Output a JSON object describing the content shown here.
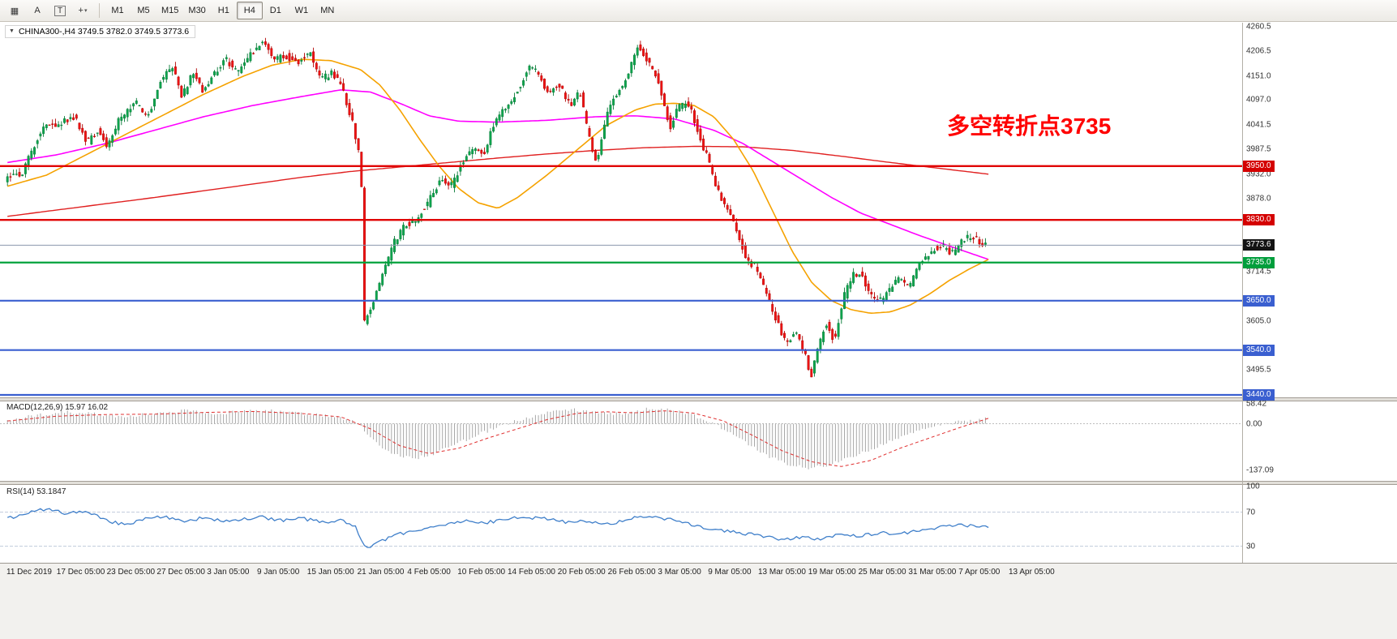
{
  "toolbar": {
    "tools": [
      {
        "name": "charts-grid-icon",
        "glyph": "▦"
      },
      {
        "name": "cursor-tool-icon",
        "glyph": "A"
      },
      {
        "name": "text-tool-icon",
        "glyph": "T"
      },
      {
        "name": "crosshair-tool-icon",
        "glyph": "+",
        "dropdown": true
      }
    ],
    "timeframes": [
      {
        "label": "M1",
        "active": false
      },
      {
        "label": "M5",
        "active": false
      },
      {
        "label": "M15",
        "active": false
      },
      {
        "label": "M30",
        "active": false
      },
      {
        "label": "H1",
        "active": false
      },
      {
        "label": "H4",
        "active": true
      },
      {
        "label": "D1",
        "active": false
      },
      {
        "label": "W1",
        "active": false
      },
      {
        "label": "MN",
        "active": false
      }
    ]
  },
  "chart_header": {
    "dropdown_glyph": "▼",
    "title": "CHINA300-,H4  3749.5 3782.0 3749.5 3773.6"
  },
  "annotation": {
    "text": "多空转折点3735",
    "color": "#ff0000"
  },
  "price_scale": {
    "plain_labels": [
      {
        "text": "4260.5",
        "price": 4260.5
      },
      {
        "text": "4206.5",
        "price": 4206.5
      },
      {
        "text": "4151.0",
        "price": 4151.0
      },
      {
        "text": "4097.0",
        "price": 4097.0
      },
      {
        "text": "4041.5",
        "price": 4041.5
      },
      {
        "text": "3987.5",
        "price": 3987.5
      },
      {
        "text": "3932.0",
        "price": 3932.0
      },
      {
        "text": "3878.0",
        "price": 3878.0
      },
      {
        "text": "3714.5",
        "price": 3714.5
      },
      {
        "text": "3605.0",
        "price": 3605.0
      },
      {
        "text": "3495.5",
        "price": 3495.5
      }
    ],
    "tags": [
      {
        "text": "3950.0",
        "price": 3950.0,
        "bg": "#d40000"
      },
      {
        "text": "3830.0",
        "price": 3830.0,
        "bg": "#d40000"
      },
      {
        "text": "3773.6",
        "price": 3773.6,
        "bg": "#141414"
      },
      {
        "text": "3735.0",
        "price": 3735.0,
        "bg": "#009e3c"
      },
      {
        "text": "3650.0",
        "price": 3650.0,
        "bg": "#3a5fd0"
      },
      {
        "text": "3540.0",
        "price": 3540.0,
        "bg": "#3a5fd0"
      },
      {
        "text": "3440.0",
        "price": 3440.0,
        "bg": "#3a5fd0"
      }
    ]
  },
  "hlines": [
    {
      "price": 3950.0,
      "color": "#e00000",
      "width": 2.4
    },
    {
      "price": 3830.0,
      "color": "#e00000",
      "width": 2.4
    },
    {
      "price": 3735.0,
      "color": "#00a23c",
      "width": 2.2
    },
    {
      "price": 3650.0,
      "color": "#3a5fd0",
      "width": 2.2
    },
    {
      "price": 3540.0,
      "color": "#3a5fd0",
      "width": 2.2
    },
    {
      "price": 3440.0,
      "color": "#3a5fd0",
      "width": 2.2
    }
  ],
  "bid_line": {
    "price": 3773.6,
    "color": "#8c98ae"
  },
  "macd": {
    "label": "MACD(12,26,9) 15.97 16.02",
    "values": {
      "macd": 15.97,
      "signal": 16.02
    },
    "scale_labels": [
      {
        "text": "58.42",
        "value": 58.42
      },
      {
        "text": "0.00",
        "value": 0.0
      },
      {
        "text": "-137.09",
        "value": -137.09
      }
    ]
  },
  "rsi": {
    "label": "RSI(14) 53.1847",
    "value": 53.1847,
    "levels": [
      70,
      30
    ],
    "scale_labels": [
      {
        "text": "100",
        "value": 100
      },
      {
        "text": "70",
        "value": 70
      },
      {
        "text": "30",
        "value": 30
      }
    ]
  },
  "time_axis": {
    "labels": [
      "11 Dec 2019",
      "17 Dec 05:00",
      "23 Dec 05:00",
      "27 Dec 05:00",
      "3 Jan 05:00",
      "9 Jan 05:00",
      "15 Jan 05:00",
      "21 Jan 05:00",
      "4 Feb 05:00",
      "10 Feb 05:00",
      "14 Feb 05:00",
      "20 Feb 05:00",
      "26 Feb 05:00",
      "3 Mar 05:00",
      "9 Mar 05:00",
      "13 Mar 05:00",
      "19 Mar 05:00",
      "25 Mar 05:00",
      "31 Mar 05:00",
      "7 Apr 05:00",
      "13 Apr 05:00"
    ]
  },
  "chart_data": {
    "type": "candlestick",
    "symbol": "CHINA300-",
    "timeframe": "H4",
    "current_bar": {
      "open": 3749.5,
      "high": 3782.0,
      "low": 3749.5,
      "close": 3773.6
    },
    "price_axis_range": [
      3440.0,
      4260.5
    ],
    "candle_count": 327,
    "price_path": [
      [
        0,
        3920
      ],
      [
        0.018,
        3935
      ],
      [
        0.039,
        4040
      ],
      [
        0.055,
        4045
      ],
      [
        0.072,
        4060
      ],
      [
        0.084,
        4000
      ],
      [
        0.094,
        4030
      ],
      [
        0.105,
        3995
      ],
      [
        0.117,
        4055
      ],
      [
        0.134,
        4090
      ],
      [
        0.146,
        4060
      ],
      [
        0.159,
        4140
      ],
      [
        0.171,
        4175
      ],
      [
        0.181,
        4105
      ],
      [
        0.192,
        4160
      ],
      [
        0.202,
        4115
      ],
      [
        0.212,
        4150
      ],
      [
        0.225,
        4190
      ],
      [
        0.237,
        4160
      ],
      [
        0.25,
        4195
      ],
      [
        0.264,
        4235
      ],
      [
        0.274,
        4185
      ],
      [
        0.287,
        4195
      ],
      [
        0.299,
        4180
      ],
      [
        0.312,
        4205
      ],
      [
        0.322,
        4140
      ],
      [
        0.334,
        4160
      ],
      [
        0.345,
        4120
      ],
      [
        0.355,
        4045
      ],
      [
        0.3635,
        3950
      ],
      [
        0.3665,
        3600
      ],
      [
        0.374,
        3630
      ],
      [
        0.384,
        3700
      ],
      [
        0.396,
        3775
      ],
      [
        0.407,
        3815
      ],
      [
        0.419,
        3830
      ],
      [
        0.431,
        3865
      ],
      [
        0.444,
        3920
      ],
      [
        0.455,
        3905
      ],
      [
        0.466,
        3955
      ],
      [
        0.477,
        3990
      ],
      [
        0.488,
        3975
      ],
      [
        0.499,
        4045
      ],
      [
        0.512,
        4085
      ],
      [
        0.524,
        4120
      ],
      [
        0.536,
        4175
      ],
      [
        0.545,
        4150
      ],
      [
        0.555,
        4110
      ],
      [
        0.565,
        4135
      ],
      [
        0.576,
        4085
      ],
      [
        0.587,
        4115
      ],
      [
        0.595,
        4020
      ],
      [
        0.603,
        3955
      ],
      [
        0.613,
        4060
      ],
      [
        0.623,
        4110
      ],
      [
        0.634,
        4145
      ],
      [
        0.646,
        4225
      ],
      [
        0.656,
        4180
      ],
      [
        0.667,
        4140
      ],
      [
        0.678,
        4035
      ],
      [
        0.688,
        4085
      ],
      [
        0.698,
        4090
      ],
      [
        0.706,
        4030
      ],
      [
        0.717,
        3965
      ],
      [
        0.727,
        3895
      ],
      [
        0.737,
        3855
      ],
      [
        0.747,
        3800
      ],
      [
        0.758,
        3735
      ],
      [
        0.766,
        3725
      ],
      [
        0.776,
        3670
      ],
      [
        0.787,
        3605
      ],
      [
        0.797,
        3550
      ],
      [
        0.806,
        3585
      ],
      [
        0.816,
        3530
      ],
      [
        0.822,
        3480
      ],
      [
        0.83,
        3555
      ],
      [
        0.838,
        3600
      ],
      [
        0.846,
        3560
      ],
      [
        0.855,
        3655
      ],
      [
        0.864,
        3705
      ],
      [
        0.872,
        3715
      ],
      [
        0.88,
        3675
      ],
      [
        0.888,
        3645
      ],
      [
        0.897,
        3660
      ],
      [
        0.905,
        3685
      ],
      [
        0.913,
        3705
      ],
      [
        0.922,
        3680
      ],
      [
        0.93,
        3725
      ],
      [
        0.938,
        3745
      ],
      [
        0.946,
        3765
      ],
      [
        0.956,
        3770
      ],
      [
        0.966,
        3755
      ],
      [
        0.975,
        3780
      ],
      [
        0.983,
        3795
      ],
      [
        0.992,
        3785
      ],
      [
        1,
        3773.6
      ]
    ],
    "ma_magenta": [
      [
        0,
        3958
      ],
      [
        0.05,
        3975
      ],
      [
        0.1,
        4000
      ],
      [
        0.15,
        4030
      ],
      [
        0.2,
        4060
      ],
      [
        0.25,
        4085
      ],
      [
        0.3,
        4105
      ],
      [
        0.34,
        4120
      ],
      [
        0.37,
        4115
      ],
      [
        0.4,
        4090
      ],
      [
        0.43,
        4062
      ],
      [
        0.46,
        4050
      ],
      [
        0.5,
        4048
      ],
      [
        0.55,
        4052
      ],
      [
        0.6,
        4060
      ],
      [
        0.64,
        4062
      ],
      [
        0.68,
        4055
      ],
      [
        0.72,
        4030
      ],
      [
        0.75,
        4000
      ],
      [
        0.78,
        3960
      ],
      [
        0.81,
        3920
      ],
      [
        0.84,
        3880
      ],
      [
        0.87,
        3845
      ],
      [
        0.9,
        3820
      ],
      [
        0.93,
        3795
      ],
      [
        0.96,
        3772
      ],
      [
        1,
        3742
      ]
    ],
    "ma_orange": [
      [
        0,
        3905
      ],
      [
        0.04,
        3930
      ],
      [
        0.08,
        3975
      ],
      [
        0.12,
        4020
      ],
      [
        0.16,
        4065
      ],
      [
        0.2,
        4110
      ],
      [
        0.24,
        4150
      ],
      [
        0.27,
        4175
      ],
      [
        0.3,
        4188
      ],
      [
        0.33,
        4185
      ],
      [
        0.36,
        4165
      ],
      [
        0.38,
        4130
      ],
      [
        0.4,
        4075
      ],
      [
        0.42,
        4010
      ],
      [
        0.44,
        3950
      ],
      [
        0.46,
        3900
      ],
      [
        0.48,
        3868
      ],
      [
        0.5,
        3856
      ],
      [
        0.52,
        3880
      ],
      [
        0.55,
        3930
      ],
      [
        0.58,
        3985
      ],
      [
        0.61,
        4040
      ],
      [
        0.64,
        4075
      ],
      [
        0.66,
        4088
      ],
      [
        0.68,
        4090
      ],
      [
        0.7,
        4085
      ],
      [
        0.72,
        4060
      ],
      [
        0.74,
        4010
      ],
      [
        0.76,
        3940
      ],
      [
        0.78,
        3850
      ],
      [
        0.8,
        3760
      ],
      [
        0.82,
        3690
      ],
      [
        0.84,
        3650
      ],
      [
        0.86,
        3630
      ],
      [
        0.88,
        3622
      ],
      [
        0.9,
        3625
      ],
      [
        0.92,
        3640
      ],
      [
        0.94,
        3665
      ],
      [
        0.96,
        3695
      ],
      [
        0.98,
        3720
      ],
      [
        1,
        3742
      ]
    ],
    "ma_red": [
      [
        0,
        3838
      ],
      [
        0.05,
        3852
      ],
      [
        0.1,
        3866
      ],
      [
        0.15,
        3880
      ],
      [
        0.2,
        3895
      ],
      [
        0.25,
        3910
      ],
      [
        0.3,
        3925
      ],
      [
        0.35,
        3938
      ],
      [
        0.4,
        3948
      ],
      [
        0.45,
        3958
      ],
      [
        0.5,
        3968
      ],
      [
        0.55,
        3977
      ],
      [
        0.6,
        3985
      ],
      [
        0.65,
        3991
      ],
      [
        0.7,
        3994
      ],
      [
        0.75,
        3993
      ],
      [
        0.8,
        3985
      ],
      [
        0.85,
        3972
      ],
      [
        0.9,
        3958
      ],
      [
        0.95,
        3945
      ],
      [
        1,
        3932
      ]
    ],
    "macd_hist": [
      [
        0,
        10
      ],
      [
        0.03,
        25
      ],
      [
        0.06,
        35
      ],
      [
        0.09,
        28
      ],
      [
        0.12,
        20
      ],
      [
        0.15,
        30
      ],
      [
        0.18,
        38
      ],
      [
        0.21,
        30
      ],
      [
        0.24,
        35
      ],
      [
        0.27,
        40
      ],
      [
        0.3,
        30
      ],
      [
        0.33,
        22
      ],
      [
        0.355,
        8
      ],
      [
        0.375,
        -55
      ],
      [
        0.395,
        -90
      ],
      [
        0.415,
        -102
      ],
      [
        0.435,
        -88
      ],
      [
        0.455,
        -62
      ],
      [
        0.475,
        -38
      ],
      [
        0.495,
        -15
      ],
      [
        0.515,
        5
      ],
      [
        0.535,
        22
      ],
      [
        0.555,
        36
      ],
      [
        0.575,
        42
      ],
      [
        0.595,
        34
      ],
      [
        0.615,
        28
      ],
      [
        0.635,
        33
      ],
      [
        0.655,
        45
      ],
      [
        0.675,
        40
      ],
      [
        0.695,
        28
      ],
      [
        0.715,
        8
      ],
      [
        0.735,
        -22
      ],
      [
        0.755,
        -58
      ],
      [
        0.775,
        -95
      ],
      [
        0.795,
        -118
      ],
      [
        0.815,
        -132
      ],
      [
        0.835,
        -122
      ],
      [
        0.855,
        -102
      ],
      [
        0.875,
        -82
      ],
      [
        0.895,
        -58
      ],
      [
        0.915,
        -36
      ],
      [
        0.935,
        -16
      ],
      [
        0.955,
        -2
      ],
      [
        0.975,
        8
      ],
      [
        1,
        16
      ]
    ],
    "macd_signal": [
      [
        0,
        8
      ],
      [
        0.05,
        22
      ],
      [
        0.1,
        27
      ],
      [
        0.15,
        28
      ],
      [
        0.2,
        33
      ],
      [
        0.25,
        36
      ],
      [
        0.3,
        30
      ],
      [
        0.34,
        20
      ],
      [
        0.37,
        -15
      ],
      [
        0.4,
        -65
      ],
      [
        0.43,
        -88
      ],
      [
        0.46,
        -72
      ],
      [
        0.49,
        -42
      ],
      [
        0.52,
        -15
      ],
      [
        0.55,
        12
      ],
      [
        0.58,
        30
      ],
      [
        0.61,
        35
      ],
      [
        0.64,
        32
      ],
      [
        0.67,
        38
      ],
      [
        0.7,
        31
      ],
      [
        0.73,
        8
      ],
      [
        0.76,
        -35
      ],
      [
        0.79,
        -80
      ],
      [
        0.82,
        -112
      ],
      [
        0.85,
        -126
      ],
      [
        0.88,
        -108
      ],
      [
        0.91,
        -72
      ],
      [
        0.94,
        -42
      ],
      [
        0.97,
        -12
      ],
      [
        1,
        16
      ]
    ],
    "rsi_line": [
      [
        0,
        62
      ],
      [
        0.02,
        70
      ],
      [
        0.04,
        74
      ],
      [
        0.06,
        68
      ],
      [
        0.08,
        72
      ],
      [
        0.1,
        60
      ],
      [
        0.12,
        55
      ],
      [
        0.14,
        62
      ],
      [
        0.16,
        65
      ],
      [
        0.18,
        60
      ],
      [
        0.2,
        63
      ],
      [
        0.22,
        60
      ],
      [
        0.24,
        62
      ],
      [
        0.26,
        64
      ],
      [
        0.28,
        60
      ],
      [
        0.3,
        63
      ],
      [
        0.32,
        58
      ],
      [
        0.34,
        60
      ],
      [
        0.355,
        52
      ],
      [
        0.365,
        28
      ],
      [
        0.375,
        32
      ],
      [
        0.39,
        40
      ],
      [
        0.41,
        48
      ],
      [
        0.43,
        52
      ],
      [
        0.45,
        56
      ],
      [
        0.47,
        60
      ],
      [
        0.49,
        58
      ],
      [
        0.51,
        62
      ],
      [
        0.53,
        64
      ],
      [
        0.55,
        62
      ],
      [
        0.57,
        58
      ],
      [
        0.59,
        60
      ],
      [
        0.61,
        55
      ],
      [
        0.63,
        60
      ],
      [
        0.65,
        66
      ],
      [
        0.67,
        62
      ],
      [
        0.69,
        58
      ],
      [
        0.71,
        52
      ],
      [
        0.73,
        48
      ],
      [
        0.75,
        45
      ],
      [
        0.77,
        42
      ],
      [
        0.79,
        38
      ],
      [
        0.81,
        41
      ],
      [
        0.83,
        38
      ],
      [
        0.85,
        44
      ],
      [
        0.87,
        42
      ],
      [
        0.89,
        46
      ],
      [
        0.91,
        44
      ],
      [
        0.93,
        48
      ],
      [
        0.95,
        52
      ],
      [
        0.97,
        55
      ],
      [
        0.99,
        54
      ],
      [
        1,
        53.2
      ]
    ],
    "colors": {
      "bull": "#0ca64e",
      "bear": "#f01414",
      "ma_fast": "#f5a200",
      "ma_mid": "#ff00ff",
      "ma_slow": "#e02020",
      "macd_hist": "#a8a8a8",
      "macd_signal": "#e03030",
      "rsi": "#3f7fca"
    }
  }
}
